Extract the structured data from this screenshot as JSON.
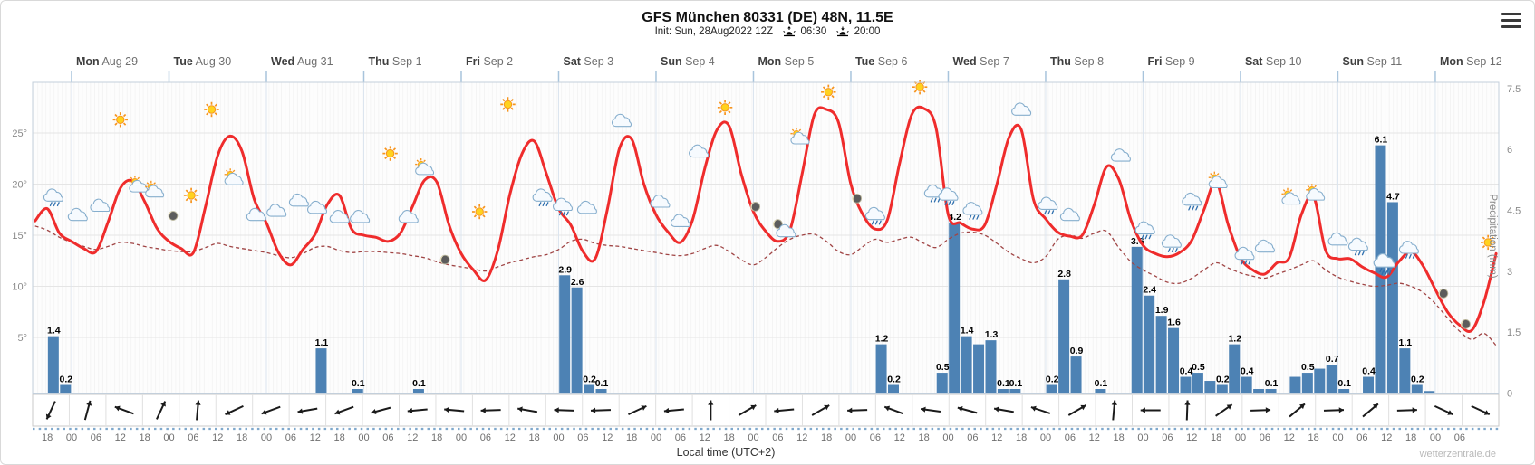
{
  "title": "GFS München 80331 (DE) 48N, 11.5E",
  "subtitle": {
    "init": "Init: Sun, 28Aug2022 12Z",
    "sunrise_time": "06:30",
    "sunset_time": "20:00"
  },
  "xaxis_title": "Local time (UTC+2)",
  "watermark": "wetterzentrale.de",
  "axes": {
    "left_ticks": [
      "25°",
      "20°",
      "15°",
      "10°",
      "5°"
    ],
    "right_ticks": [
      "7.5",
      "6",
      "4.5",
      "3",
      "1.5",
      "0"
    ],
    "right_label": "Precipitation (mm)",
    "hour_first": 18,
    "hour_step": 6,
    "hour_count": 59
  },
  "days": [
    {
      "name": "Mon",
      "date": "Aug 29"
    },
    {
      "name": "Tue",
      "date": "Aug 30"
    },
    {
      "name": "Wed",
      "date": "Aug 31"
    },
    {
      "name": "Thu",
      "date": "Sep 1"
    },
    {
      "name": "Fri",
      "date": "Sep 2"
    },
    {
      "name": "Sat",
      "date": "Sep 3"
    },
    {
      "name": "Sun",
      "date": "Sep 4"
    },
    {
      "name": "Mon",
      "date": "Sep 5"
    },
    {
      "name": "Tue",
      "date": "Sep 6"
    },
    {
      "name": "Wed",
      "date": "Sep 7"
    },
    {
      "name": "Thu",
      "date": "Sep 8"
    },
    {
      "name": "Fri",
      "date": "Sep 9"
    },
    {
      "name": "Sat",
      "date": "Sep 10"
    },
    {
      "name": "Sun",
      "date": "Sep 11"
    },
    {
      "name": "Mon",
      "date": "Sep 12"
    }
  ],
  "colors": {
    "temperature": "#ef2c2c",
    "dewpoint": "#a04545",
    "bars": "#4d82b4",
    "grid": "#e5e5e5",
    "stripes": "#f0f0f0",
    "day_line": "#dce5ef",
    "day_tick": "#a8c4dc",
    "plot_border": "#c3cfdb",
    "axis_text": "#8a8a8a",
    "wind_arrow": "#1a1a1a",
    "dash_row": "#7fa8cc"
  },
  "chart_data": {
    "type": "line+bar",
    "title": "GFS München 80331 (DE) 48N, 11.5E",
    "time_start": "2022-08-28 15:00 UTC+2",
    "step_hours": 3,
    "temp_axis_ticks_c": [
      25,
      20,
      15,
      10,
      5
    ],
    "precip_axis_ticks_mm": [
      7.5,
      6,
      4.5,
      3,
      1.5,
      0
    ],
    "series": [
      {
        "name": "2m temperature (°C)",
        "style": "solid red",
        "values": [
          16.4,
          17.6,
          15.2,
          14.4,
          13.7,
          13.4,
          16.3,
          19.6,
          20.3,
          18.3,
          15.7,
          14.4,
          13.7,
          13.3,
          17.8,
          22.8,
          24.7,
          23.2,
          18.5,
          16.2,
          13.3,
          12.1,
          13.6,
          15.1,
          18.0,
          18.9,
          15.6,
          15.0,
          14.8,
          14.4,
          15.2,
          17.8,
          20.4,
          20.2,
          16.0,
          13.2,
          11.6,
          10.6,
          13.5,
          19.0,
          23.0,
          24.2,
          21.0,
          17.6,
          16.0,
          13.4,
          12.7,
          17.5,
          23.5,
          24.4,
          20.0,
          17.0,
          15.3,
          14.3,
          16.5,
          21.5,
          25.3,
          25.7,
          21.0,
          17.3,
          15.4,
          14.4,
          15.5,
          21.0,
          26.8,
          27.3,
          26.0,
          20.0,
          17.0,
          15.6,
          16.5,
          22.0,
          26.8,
          27.4,
          25.5,
          17.0,
          16.2,
          15.6,
          16.0,
          20.0,
          24.6,
          25.3,
          18.5,
          16.6,
          15.3,
          14.9,
          15.0,
          18.0,
          21.7,
          20.5,
          16.5,
          14.0,
          13.2,
          12.9,
          13.3,
          14.5,
          17.5,
          20.2,
          16.0,
          12.8,
          11.6,
          11.2,
          12.3,
          12.8,
          17.0,
          18.8,
          13.5,
          12.7,
          12.7,
          11.9,
          11.3,
          10.9,
          12.4,
          13.4,
          12.0,
          9.7,
          7.5,
          6.2,
          5.7,
          8.5,
          13.2
        ]
      },
      {
        "name": "Dew point (°C)",
        "style": "dashed dark red",
        "values": [
          15.9,
          15.5,
          14.8,
          14.3,
          13.9,
          13.6,
          13.9,
          14.3,
          14.2,
          13.9,
          13.7,
          13.5,
          13.4,
          13.4,
          13.8,
          14.2,
          13.9,
          13.7,
          13.5,
          13.3,
          13.0,
          12.8,
          13.2,
          13.8,
          13.9,
          13.5,
          13.3,
          13.4,
          13.4,
          13.3,
          13.2,
          13.0,
          12.8,
          12.4,
          12.1,
          11.9,
          11.7,
          11.5,
          11.9,
          12.3,
          12.6,
          12.9,
          13.1,
          13.6,
          14.4,
          14.6,
          14.2,
          14.0,
          13.9,
          13.7,
          13.5,
          13.3,
          13.1,
          13.0,
          13.2,
          13.7,
          14.0,
          13.4,
          12.6,
          12.1,
          12.8,
          13.8,
          14.6,
          15.0,
          15.1,
          14.4,
          13.4,
          13.1,
          13.9,
          14.6,
          14.3,
          14.6,
          14.8,
          14.2,
          13.8,
          14.6,
          15.2,
          15.3,
          15.0,
          14.2,
          13.3,
          12.7,
          12.3,
          12.9,
          14.6,
          15.0,
          14.7,
          15.2,
          15.4,
          13.8,
          12.4,
          11.6,
          11.0,
          10.4,
          10.3,
          10.8,
          11.6,
          12.3,
          11.8,
          11.3,
          11.0,
          10.8,
          11.2,
          11.6,
          12.1,
          12.5,
          11.6,
          10.9,
          10.5,
          10.2,
          10.0,
          10.1,
          10.3,
          10.0,
          9.4,
          8.3,
          6.9,
          5.6,
          4.8,
          5.4,
          4.2
        ]
      }
    ],
    "precip_bars_mm": [
      [
        3,
        1.4,
        1
      ],
      [
        6,
        0.2,
        1
      ],
      [
        69,
        1.1,
        1
      ],
      [
        78,
        0.1,
        1
      ],
      [
        93,
        0.1,
        1
      ],
      [
        129,
        2.9,
        1
      ],
      [
        132,
        2.6,
        1
      ],
      [
        135,
        0.2,
        1
      ],
      [
        138,
        0.1,
        1
      ],
      [
        207,
        1.2,
        1
      ],
      [
        210,
        0.2,
        1
      ],
      [
        222,
        0.5,
        1
      ],
      [
        225,
        4.2,
        1
      ],
      [
        228,
        1.4,
        1
      ],
      [
        231,
        1.2,
        0
      ],
      [
        234,
        1.3,
        1
      ],
      [
        237,
        0.1,
        1
      ],
      [
        240,
        0.1,
        1
      ],
      [
        249,
        0.2,
        1
      ],
      [
        252,
        2.8,
        1
      ],
      [
        255,
        0.9,
        1
      ],
      [
        261,
        0.1,
        1
      ],
      [
        270,
        3.6,
        1
      ],
      [
        273,
        2.4,
        1
      ],
      [
        276,
        1.9,
        1
      ],
      [
        279,
        1.6,
        1
      ],
      [
        282,
        0.4,
        1
      ],
      [
        285,
        0.5,
        1
      ],
      [
        288,
        0.3,
        0
      ],
      [
        291,
        0.2,
        1
      ],
      [
        294,
        1.2,
        1
      ],
      [
        297,
        0.4,
        1
      ],
      [
        300,
        0.1,
        0
      ],
      [
        303,
        0.1,
        1
      ],
      [
        309,
        0.4,
        0
      ],
      [
        312,
        0.5,
        1
      ],
      [
        315,
        0.6,
        0
      ],
      [
        318,
        0.7,
        1
      ],
      [
        321,
        0.1,
        1
      ],
      [
        327,
        0.4,
        1
      ],
      [
        330,
        6.1,
        1
      ],
      [
        333,
        4.7,
        1
      ],
      [
        336,
        1.1,
        1
      ],
      [
        339,
        0.2,
        1
      ],
      [
        342,
        0.05,
        0
      ]
    ],
    "weather_icons": [
      [
        5,
        18.6,
        "rain"
      ],
      [
        11,
        16.8,
        "cloud"
      ],
      [
        16.5,
        17.7,
        "cloud"
      ],
      [
        21,
        26.3,
        "sun"
      ],
      [
        25.5,
        19.8,
        "suncloud"
      ],
      [
        29.5,
        19.3,
        "suncloud"
      ],
      [
        34,
        16.9,
        "moon"
      ],
      [
        38.5,
        18.9,
        "sun"
      ],
      [
        43.5,
        27.3,
        "sun"
      ],
      [
        49,
        20.5,
        "suncloud"
      ],
      [
        55,
        16.8,
        "cloud"
      ],
      [
        60,
        17.2,
        "cloud"
      ],
      [
        65.5,
        18.2,
        "cloud"
      ],
      [
        70,
        17.5,
        "cloud"
      ],
      [
        75.5,
        16.6,
        "cloud"
      ],
      [
        80.5,
        16.6,
        "cloud"
      ],
      [
        87.5,
        23.0,
        "sun"
      ],
      [
        92.5,
        16.6,
        "cloud"
      ],
      [
        96,
        21.5,
        "suncloud"
      ],
      [
        101,
        12.6,
        "moon"
      ],
      [
        109.5,
        17.3,
        "sun"
      ],
      [
        116.5,
        27.8,
        "sun"
      ],
      [
        125.5,
        18.6,
        "rain"
      ],
      [
        130.5,
        17.7,
        "rain"
      ],
      [
        136.5,
        17.5,
        "cloud"
      ],
      [
        145,
        26.0,
        "cloud"
      ],
      [
        154.5,
        18.1,
        "cloud"
      ],
      [
        159.5,
        16.2,
        "cloud"
      ],
      [
        164,
        23.0,
        "cloud"
      ],
      [
        170,
        27.5,
        "sun"
      ],
      [
        177.5,
        17.8,
        "moon"
      ],
      [
        183,
        16.1,
        "moon"
      ],
      [
        185.5,
        15.2,
        "cloud"
      ],
      [
        188.5,
        24.5,
        "suncloud"
      ],
      [
        195.5,
        29.0,
        "sun"
      ],
      [
        202.5,
        18.6,
        "moon"
      ],
      [
        207.5,
        16.8,
        "rain"
      ],
      [
        218,
        29.5,
        "sun"
      ],
      [
        222,
        19.0,
        "rain"
      ],
      [
        225.5,
        18.7,
        "rain"
      ],
      [
        231.5,
        17.3,
        "rain"
      ],
      [
        243.5,
        27.1,
        "cloud"
      ],
      [
        250,
        17.8,
        "rain"
      ],
      [
        255.5,
        16.8,
        "cloud"
      ],
      [
        268,
        22.6,
        "cloud"
      ],
      [
        274,
        15.4,
        "rain"
      ],
      [
        280.5,
        14.1,
        "rain"
      ],
      [
        285.5,
        18.2,
        "rain"
      ],
      [
        291.5,
        20.2,
        "suncloud"
      ],
      [
        298.5,
        12.9,
        "rain"
      ],
      [
        303.5,
        13.7,
        "cloud"
      ],
      [
        309.5,
        18.6,
        "suncloud"
      ],
      [
        315.5,
        19.0,
        "suncloud"
      ],
      [
        321.5,
        14.4,
        "cloud"
      ],
      [
        326.5,
        13.8,
        "rain"
      ],
      [
        333,
        12.1,
        "heavyrain"
      ],
      [
        339,
        13.5,
        "rain"
      ],
      [
        347,
        9.3,
        "moon"
      ],
      [
        352.5,
        6.3,
        "moon"
      ],
      [
        358,
        14.3,
        "sun"
      ]
    ],
    "wind_arrows_deg": [
      245,
      75,
      160,
      65,
      85,
      205,
      200,
      190,
      200,
      195,
      185,
      175,
      182,
      170,
      178,
      182,
      25,
      185,
      90,
      30,
      185,
      30,
      182,
      160,
      172,
      165,
      170,
      162,
      30,
      85,
      180,
      88,
      35,
      2,
      40,
      2,
      40,
      2,
      335,
      335
    ],
    "ylim_temp": [
      0,
      30
    ],
    "ylim_precip": [
      0,
      7.65
    ],
    "grid": true,
    "legend": "none"
  }
}
